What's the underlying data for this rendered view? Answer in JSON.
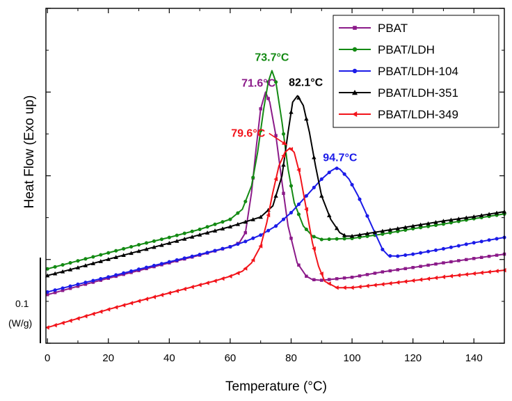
{
  "chart_data": {
    "type": "line",
    "title": "",
    "xlabel": "Temperature (°C)",
    "ylabel": "Heat Flow (Exo up)",
    "xlim": [
      -0.5,
      150
    ],
    "ylim": [
      0,
      100
    ],
    "x_ticks": [
      0,
      20,
      40,
      60,
      80,
      100,
      120,
      140
    ],
    "legend_position": "top-right",
    "scale_bar": {
      "value_label": "0.1",
      "unit_label": "(W/g)"
    },
    "series": [
      {
        "name": "PBAT",
        "color": "#8B1A89",
        "marker": "square",
        "points": [
          [
            0,
            14.5
          ],
          [
            10,
            17
          ],
          [
            20,
            19.4
          ],
          [
            30,
            21.7
          ],
          [
            40,
            24
          ],
          [
            50,
            26.3
          ],
          [
            60,
            28.8
          ],
          [
            63,
            30
          ],
          [
            65,
            33
          ],
          [
            67,
            45
          ],
          [
            68.5,
            58
          ],
          [
            70,
            70
          ],
          [
            71.6,
            75
          ],
          [
            73,
            72
          ],
          [
            75,
            62
          ],
          [
            77,
            48
          ],
          [
            79,
            35
          ],
          [
            82,
            24
          ],
          [
            85,
            20
          ],
          [
            87,
            19
          ],
          [
            90,
            18.8
          ],
          [
            100,
            19.7
          ],
          [
            110,
            21.3
          ],
          [
            120,
            22.6
          ],
          [
            130,
            24
          ],
          [
            140,
            25.3
          ],
          [
            150,
            26.6
          ]
        ]
      },
      {
        "name": "PBAT/LDH",
        "color": "#138A13",
        "marker": "circle",
        "points": [
          [
            0,
            22.2
          ],
          [
            10,
            24.6
          ],
          [
            20,
            27
          ],
          [
            30,
            29.4
          ],
          [
            40,
            31.6
          ],
          [
            50,
            34
          ],
          [
            60,
            37
          ],
          [
            64,
            40
          ],
          [
            67,
            47
          ],
          [
            69,
            57
          ],
          [
            71,
            70
          ],
          [
            72.5,
            78
          ],
          [
            73.7,
            81.4
          ],
          [
            75,
            78
          ],
          [
            77,
            66
          ],
          [
            79,
            52
          ],
          [
            81,
            42
          ],
          [
            84,
            35
          ],
          [
            87,
            32
          ],
          [
            90,
            31
          ],
          [
            100,
            31.3
          ],
          [
            110,
            32.6
          ],
          [
            120,
            34.2
          ],
          [
            130,
            35.6
          ],
          [
            140,
            37.2
          ],
          [
            150,
            38.6
          ]
        ]
      },
      {
        "name": "PBAT/LDH-104",
        "color": "#1B1BE8",
        "marker": "circle",
        "points": [
          [
            0,
            15.3
          ],
          [
            10,
            17.6
          ],
          [
            20,
            19.8
          ],
          [
            30,
            22.1
          ],
          [
            40,
            24.3
          ],
          [
            50,
            26.5
          ],
          [
            60,
            28.8
          ],
          [
            65,
            30.4
          ],
          [
            70,
            32.3
          ],
          [
            75,
            35
          ],
          [
            80,
            39
          ],
          [
            85,
            44
          ],
          [
            90,
            49
          ],
          [
            93,
            51.4
          ],
          [
            94.7,
            52.3
          ],
          [
            96,
            52
          ],
          [
            99,
            49
          ],
          [
            102,
            44
          ],
          [
            105,
            38
          ],
          [
            108,
            32
          ],
          [
            110,
            28
          ],
          [
            112,
            26.1
          ],
          [
            115,
            26
          ],
          [
            120,
            26.6
          ],
          [
            130,
            28.2
          ],
          [
            140,
            30
          ],
          [
            150,
            31.6
          ]
        ]
      },
      {
        "name": "PBAT/LDH-351",
        "color": "#000000",
        "marker": "triangle",
        "points": [
          [
            0,
            20.2
          ],
          [
            10,
            22.6
          ],
          [
            20,
            25.1
          ],
          [
            30,
            27.5
          ],
          [
            40,
            29.9
          ],
          [
            50,
            32.4
          ],
          [
            60,
            34.8
          ],
          [
            70,
            37.7
          ],
          [
            74,
            41
          ],
          [
            77,
            50
          ],
          [
            79,
            63
          ],
          [
            80.5,
            72
          ],
          [
            82.1,
            73.9
          ],
          [
            84,
            71
          ],
          [
            86,
            63
          ],
          [
            88,
            53
          ],
          [
            90,
            44
          ],
          [
            93,
            37
          ],
          [
            96,
            33
          ],
          [
            98,
            32
          ],
          [
            100,
            32
          ],
          [
            110,
            33.5
          ],
          [
            120,
            35
          ],
          [
            130,
            36.5
          ],
          [
            140,
            37.8
          ],
          [
            150,
            39.3
          ]
        ]
      },
      {
        "name": "PBAT/LDH-349",
        "color": "#F2141B",
        "marker": "triangle-left",
        "points": [
          [
            0,
            4.7
          ],
          [
            10,
            7.4
          ],
          [
            20,
            10.1
          ],
          [
            30,
            12.6
          ],
          [
            40,
            15
          ],
          [
            50,
            17.4
          ],
          [
            55,
            18.6
          ],
          [
            60,
            20
          ],
          [
            64,
            21.5
          ],
          [
            67,
            24
          ],
          [
            70,
            29
          ],
          [
            72,
            36
          ],
          [
            74,
            45
          ],
          [
            76,
            53
          ],
          [
            78,
            57
          ],
          [
            79.6,
            58.3
          ],
          [
            81,
            57
          ],
          [
            83,
            50
          ],
          [
            85,
            40
          ],
          [
            87,
            30
          ],
          [
            89,
            23
          ],
          [
            91,
            18.5
          ],
          [
            95,
            16.6
          ],
          [
            100,
            16.6
          ],
          [
            110,
            17.6
          ],
          [
            120,
            18.7
          ],
          [
            130,
            19.8
          ],
          [
            140,
            20.8
          ],
          [
            150,
            21.8
          ]
        ]
      }
    ],
    "annotations": [
      {
        "text": "71.6°C",
        "color": "#8B1A89",
        "x": 71.6,
        "y": 75
      },
      {
        "text": "73.7°C",
        "color": "#138A13",
        "x": 73.7,
        "y": 81.4
      },
      {
        "text": "82.1°C",
        "color": "#000000",
        "x": 82.1,
        "y": 73.9
      },
      {
        "text": "94.7°C",
        "color": "#1B1BE8",
        "x": 94.7,
        "y": 52.3
      },
      {
        "text": "79.6°C",
        "color": "#F2141B",
        "x": 79.6,
        "y": 58.3,
        "arrow": true
      }
    ]
  }
}
